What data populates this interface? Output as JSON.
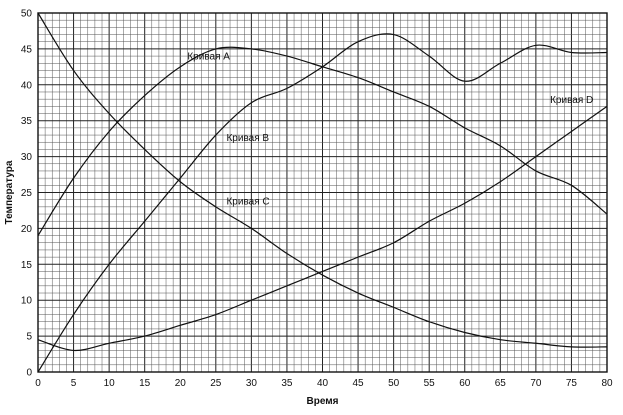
{
  "chart_data": {
    "type": "line",
    "title": "",
    "xlabel": "Время",
    "ylabel": "Температура",
    "xlim": [
      0,
      80
    ],
    "ylim": [
      0,
      50
    ],
    "x_ticks": [
      0,
      5,
      10,
      15,
      20,
      25,
      30,
      35,
      40,
      45,
      50,
      55,
      60,
      65,
      70,
      75,
      80
    ],
    "y_ticks": [
      0,
      5,
      10,
      15,
      20,
      25,
      30,
      35,
      40,
      45,
      50
    ],
    "grid": true,
    "series": [
      {
        "name": "Кривая A",
        "label_at": [
          21,
          43.5
        ],
        "points": [
          [
            0,
            19
          ],
          [
            5,
            27
          ],
          [
            10,
            33.5
          ],
          [
            15,
            38.5
          ],
          [
            20,
            42.5
          ],
          [
            25,
            45
          ],
          [
            30,
            45
          ],
          [
            35,
            44
          ],
          [
            40,
            42.5
          ],
          [
            45,
            41
          ],
          [
            50,
            39
          ],
          [
            55,
            37
          ],
          [
            60,
            34
          ],
          [
            65,
            31.5
          ],
          [
            70,
            28
          ],
          [
            75,
            26
          ],
          [
            80,
            22
          ]
        ]
      },
      {
        "name": "Кривая B",
        "label_at": [
          26.5,
          32.2
        ],
        "points": [
          [
            0,
            0
          ],
          [
            5,
            8
          ],
          [
            10,
            15
          ],
          [
            15,
            21
          ],
          [
            20,
            27
          ],
          [
            25,
            33
          ],
          [
            30,
            37.5
          ],
          [
            35,
            39.5
          ],
          [
            40,
            42.5
          ],
          [
            45,
            46
          ],
          [
            50,
            47
          ],
          [
            55,
            44
          ],
          [
            60,
            40.5
          ],
          [
            65,
            43
          ],
          [
            70,
            45.5
          ],
          [
            75,
            44.5
          ],
          [
            80,
            44.5
          ]
        ]
      },
      {
        "name": "Кривая C",
        "label_at": [
          26.5,
          23.3
        ],
        "points": [
          [
            0,
            50
          ],
          [
            5,
            42
          ],
          [
            10,
            36
          ],
          [
            15,
            31
          ],
          [
            20,
            26.5
          ],
          [
            25,
            23
          ],
          [
            30,
            20
          ],
          [
            35,
            16.5
          ],
          [
            40,
            13.5
          ],
          [
            45,
            11
          ],
          [
            50,
            9
          ],
          [
            55,
            7
          ],
          [
            60,
            5.5
          ],
          [
            65,
            4.5
          ],
          [
            70,
            4
          ],
          [
            75,
            3.5
          ],
          [
            80,
            3.5
          ]
        ]
      },
      {
        "name": "Кривая D",
        "label_at": [
          72,
          37.5
        ],
        "points": [
          [
            0,
            4.5
          ],
          [
            5,
            3
          ],
          [
            10,
            4
          ],
          [
            15,
            5
          ],
          [
            20,
            6.5
          ],
          [
            25,
            8
          ],
          [
            30,
            10
          ],
          [
            35,
            12
          ],
          [
            40,
            14
          ],
          [
            45,
            16
          ],
          [
            50,
            18
          ],
          [
            55,
            21
          ],
          [
            60,
            23.5
          ],
          [
            65,
            26.5
          ],
          [
            70,
            30
          ],
          [
            75,
            33.5
          ],
          [
            80,
            37
          ]
        ]
      }
    ]
  }
}
